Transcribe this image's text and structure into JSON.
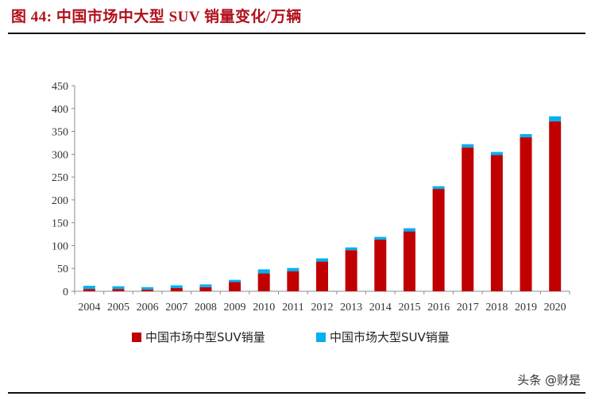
{
  "title": "图 44:  中国市场中大型 SUV 销量变化/万辆",
  "watermark": "头条 @财是",
  "colors": {
    "title": "#b0101c",
    "mid": "#c00000",
    "large": "#00b0f0"
  },
  "chart_data": {
    "type": "bar",
    "stacked": true,
    "categories": [
      "2004",
      "2005",
      "2006",
      "2007",
      "2008",
      "2009",
      "2010",
      "2011",
      "2012",
      "2013",
      "2014",
      "2015",
      "2016",
      "2017",
      "2018",
      "2019",
      "2020"
    ],
    "series": [
      {
        "name": "中国市场中型SUV销量",
        "color": "#c00000",
        "values": [
          5,
          5,
          4,
          7,
          9,
          20,
          39,
          44,
          65,
          90,
          113,
          131,
          224,
          315,
          298,
          337,
          372
        ]
      },
      {
        "name": "中国市场大型SUV销量",
        "color": "#00b0f0",
        "values": [
          7,
          6,
          5,
          6,
          6,
          5,
          9,
          7,
          7,
          6,
          6,
          7,
          6,
          7,
          7,
          7,
          11
        ]
      }
    ],
    "ylim": [
      0,
      450
    ],
    "yticks": [
      "0",
      "50",
      "100",
      "150",
      "200",
      "250",
      "300",
      "350",
      "400",
      "450"
    ],
    "legend_position": "bottom",
    "grid": false
  }
}
